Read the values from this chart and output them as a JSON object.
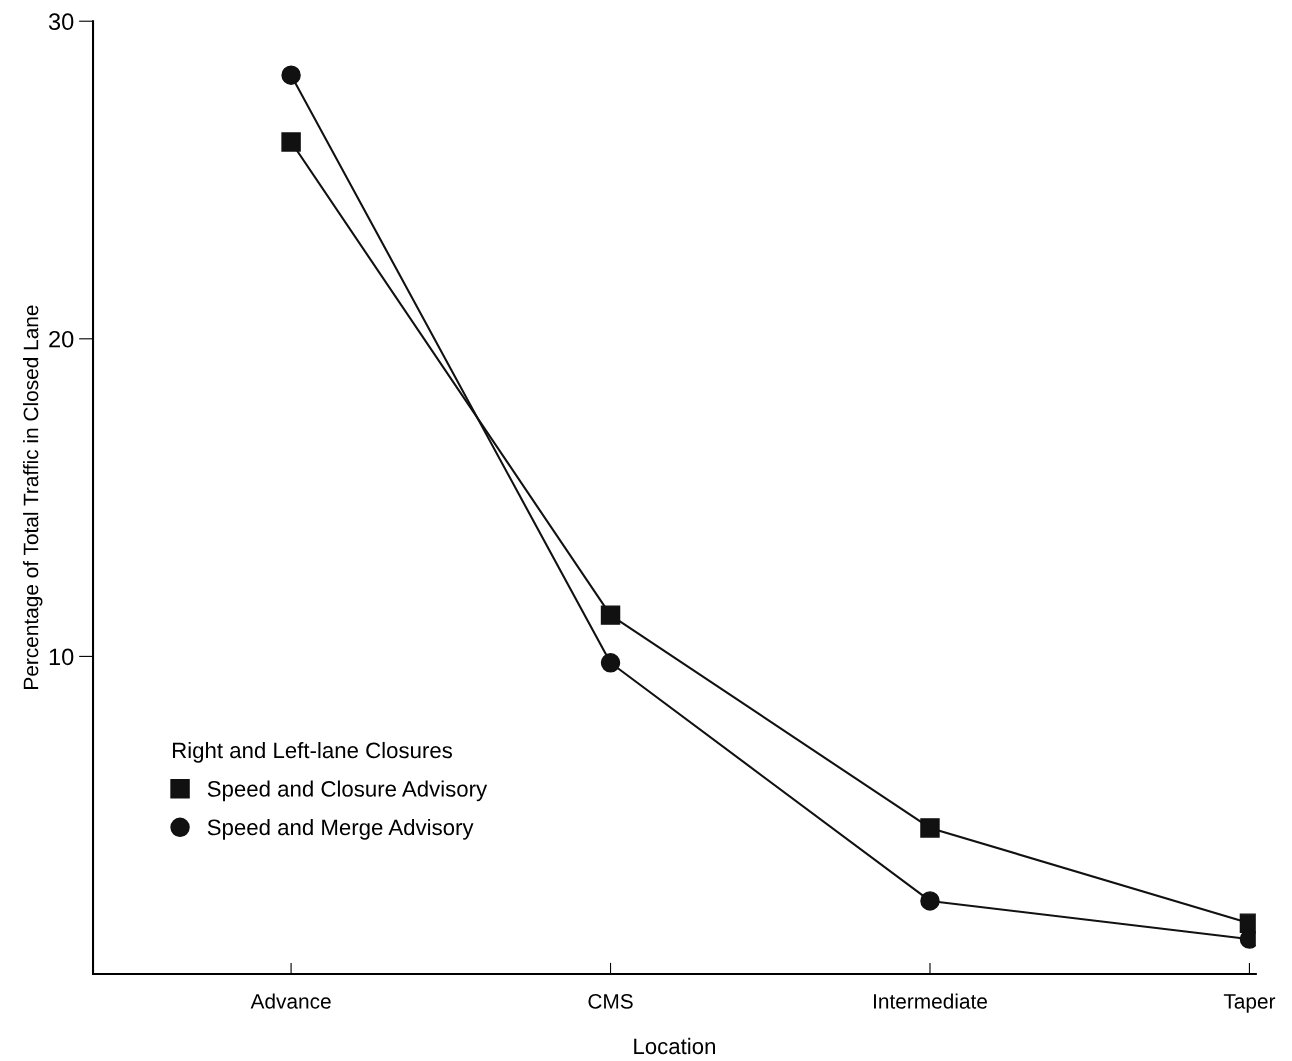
{
  "chart_data": {
    "type": "line",
    "xlabel": "Location",
    "ylabel": "Percentage of Total Traffic in Closed Lane",
    "categories": [
      "Advance",
      "CMS",
      "Intermediate",
      "Taper"
    ],
    "series": [
      {
        "name": "Speed and Closure Advisory",
        "color": "#111111",
        "marker": "square",
        "values": [
          26.2,
          11.3,
          4.6,
          1.6
        ]
      },
      {
        "name": "Speed and Merge Advisory",
        "color": "#111111",
        "marker": "circle",
        "values": [
          28.3,
          9.8,
          2.3,
          1.1
        ]
      }
    ],
    "ylim": [
      0,
      30
    ],
    "yticks": [
      10,
      20,
      30
    ],
    "grid": false,
    "legend": "lower left",
    "legend_title": "Right and Left-lane Closures",
    "line_style": "solid"
  }
}
